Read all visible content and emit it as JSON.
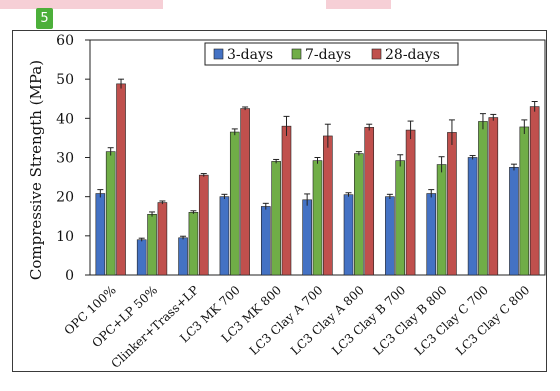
{
  "annotation_badge": "5",
  "chart_data": {
    "type": "bar",
    "title": "",
    "xlabel": "",
    "ylabel": "Compressive Strength  (MPa)",
    "ylim": [
      0,
      60
    ],
    "yticks": [
      0,
      10,
      20,
      30,
      40,
      50,
      60
    ],
    "grid": false,
    "legend_position": "top-center",
    "categories": [
      "OPC 100%",
      "OPC+LP 50%",
      "Clinker+Trass+LP",
      "LC3 MK 700",
      "LC3 MK 800",
      "LC3 Clay A 700",
      "LC3 Clay A 800",
      "LC3 Clay B 700",
      "LC3 Clay B 800",
      "LC3 Clay C 700",
      "LC3 Clay C 800"
    ],
    "series": [
      {
        "name": "3-days",
        "color": "#4472c4",
        "values": [
          20.8,
          9.0,
          9.5,
          20.0,
          17.5,
          19.2,
          20.5,
          20.0,
          20.8,
          30.0,
          27.5
        ],
        "errors": [
          1.0,
          0.4,
          0.4,
          0.6,
          0.8,
          1.5,
          0.5,
          0.6,
          1.0,
          0.5,
          0.8
        ]
      },
      {
        "name": "7-days",
        "color": "#70ad47",
        "values": [
          31.5,
          15.5,
          16.0,
          36.5,
          29.0,
          29.2,
          31.0,
          29.2,
          28.2,
          39.2,
          37.8
        ],
        "errors": [
          1.0,
          0.6,
          0.4,
          0.8,
          0.5,
          0.8,
          0.5,
          1.5,
          2.0,
          2.0,
          1.8
        ]
      },
      {
        "name": "28-days",
        "color": "#c0504d",
        "values": [
          48.8,
          18.5,
          25.5,
          42.5,
          38.0,
          35.5,
          37.7,
          37.0,
          36.4,
          40.2,
          43.0
        ],
        "errors": [
          1.2,
          0.4,
          0.4,
          0.4,
          2.5,
          3.0,
          0.8,
          2.3,
          3.2,
          0.8,
          1.3
        ]
      }
    ]
  }
}
